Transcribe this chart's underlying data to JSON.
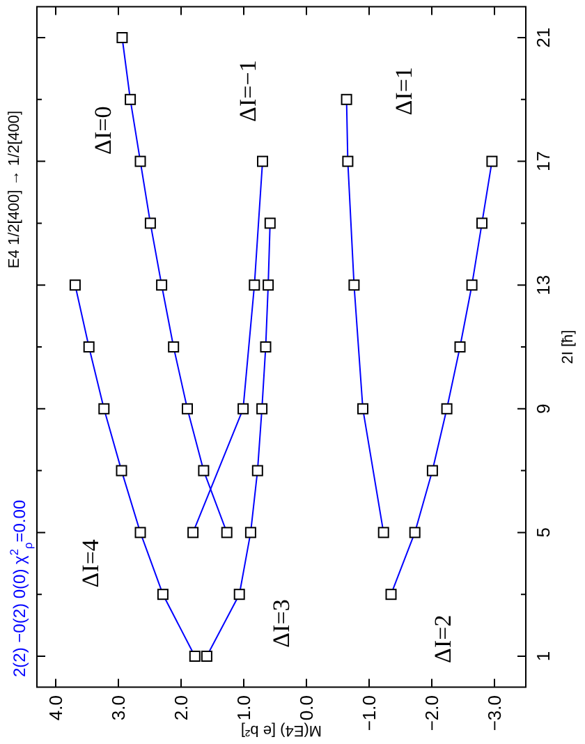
{
  "chart_data": {
    "type": "line",
    "title": "E4 1/2[400] → 1/2[400]",
    "xlabel": "M(E4) [e b²]",
    "ylabel": "2I [ħ]",
    "annotations": [
      "2(2) −0(2) 0(0)  χ$^{2}$$_{ρ}$=0.00"
    ],
    "xlim": [
      4.3,
      -3.5
    ],
    "ylim": [
      0,
      22
    ],
    "xticks": [
      {
        "value": 4,
        "label": "4.0"
      },
      {
        "value": 3,
        "label": "3.0"
      },
      {
        "value": 2,
        "label": "2.0"
      },
      {
        "value": 1,
        "label": "1.0"
      },
      {
        "value": 0,
        "label": "0.0"
      },
      {
        "value": -1,
        "label": "−1.0"
      },
      {
        "value": -2,
        "label": "−2.0"
      },
      {
        "value": -3,
        "label": "−3.0"
      }
    ],
    "yticks": [
      1,
      {
        "value": 3,
        "label": null
      },
      5,
      {
        "value": 7,
        "label": null
      },
      9,
      {
        "value": 11,
        "label": null
      },
      13,
      {
        "value": 15,
        "label": null
      },
      17,
      {
        "value": 19,
        "label": null
      },
      21
    ],
    "marker": "square",
    "line_style": "solid",
    "series": [
      {
        "name": "ΔI=−1",
        "color": "#0000ff",
        "x": [
          1.81,
          1.01,
          0.83,
          0.7
        ],
        "values": [
          5,
          9,
          13,
          17
        ]
      },
      {
        "name": "ΔI=0",
        "color": "#0000ff",
        "x": [
          1.27,
          1.64,
          1.9,
          2.12,
          2.31,
          2.49,
          2.65,
          2.81,
          2.94
        ],
        "values": [
          5,
          7,
          9,
          11,
          13,
          15,
          17,
          19,
          21
        ]
      },
      {
        "name": "ΔI=1",
        "color": "#0000ff",
        "x": [
          -1.23,
          -0.9,
          -0.76,
          -0.66,
          -0.64
        ],
        "values": [
          5,
          9,
          13,
          17,
          19
        ]
      },
      {
        "name": "ΔI=2",
        "color": "#0000ff",
        "x": [
          -1.35,
          -1.73,
          -2.01,
          -2.24,
          -2.45,
          -2.64,
          -2.8,
          -2.96
        ],
        "values": [
          3,
          5,
          7,
          9,
          11,
          13,
          15,
          17
        ]
      },
      {
        "name": "ΔI=3",
        "color": "#0000ff",
        "x": [
          1.59,
          1.07,
          0.89,
          0.78,
          0.71,
          0.65,
          0.61,
          0.58
        ],
        "values": [
          1,
          3,
          5,
          7,
          9,
          11,
          13,
          15
        ]
      },
      {
        "name": "ΔI=4",
        "color": "#0000ff",
        "x": [
          1.78,
          2.29,
          2.65,
          2.95,
          3.23,
          3.47,
          3.69
        ],
        "values": [
          1,
          3,
          5,
          7,
          9,
          11,
          13
        ]
      }
    ]
  }
}
